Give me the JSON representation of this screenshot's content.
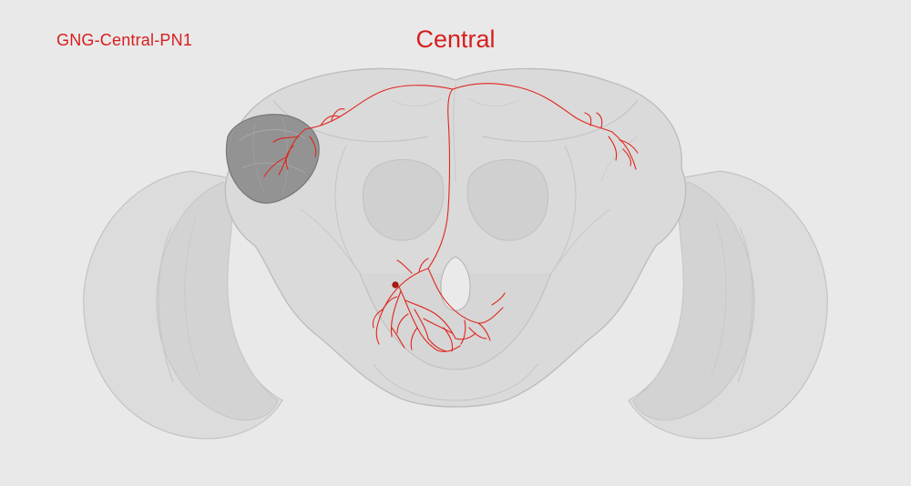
{
  "labels": {
    "neuron_name": "GNG-Central-PN1",
    "title": "Central"
  },
  "colors": {
    "background": "#e9e9e9",
    "brain_fill": "#d4d4d4",
    "brain_stroke": "#bcbcbc",
    "neuron": "#e0261e",
    "highlight_region": "#8a8a8a"
  }
}
